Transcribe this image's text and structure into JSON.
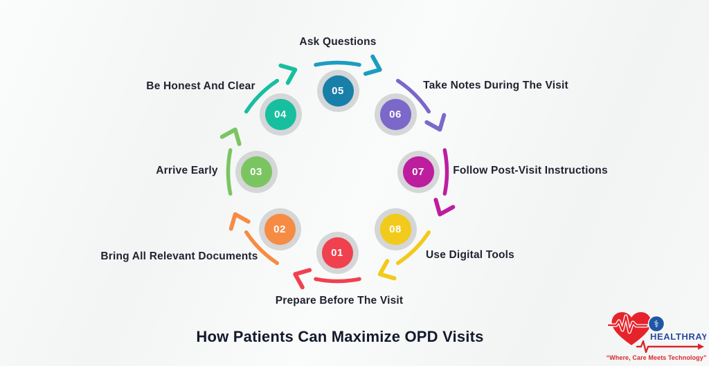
{
  "title": "How Patients Can Maximize OPD Visits",
  "steps": [
    {
      "number": "01",
      "label": "Prepare Before The Visit",
      "color": "#f0414e"
    },
    {
      "number": "02",
      "label": "Bring All Relevant Documents",
      "color": "#f68c44"
    },
    {
      "number": "03",
      "label": "Arrive Early",
      "color": "#7ac561"
    },
    {
      "number": "04",
      "label": "Be Honest And Clear",
      "color": "#17bf9f"
    },
    {
      "number": "05",
      "label": "Ask Questions",
      "color": "#187fa9",
      "arrow_color": "#1b9dbf"
    },
    {
      "number": "06",
      "label": "Take Notes During The Visit",
      "color": "#7b68c9"
    },
    {
      "number": "07",
      "label": "Follow Post-Visit Instructions",
      "color": "#bc1e9e"
    },
    {
      "number": "08",
      "label": "Use Digital Tools",
      "color": "#f2ca1b"
    }
  ],
  "ring_color": "#d5d6d8",
  "logo": {
    "brand": "HEALTHRAY",
    "tagline": "“Where, Care Meets Technology”",
    "heart_color": "#e6232a",
    "brand_color": "#2b4aa0",
    "tagline_color": "#d8272c",
    "badge_color": "#1e57a5",
    "caduceus_icon": "⚕"
  }
}
